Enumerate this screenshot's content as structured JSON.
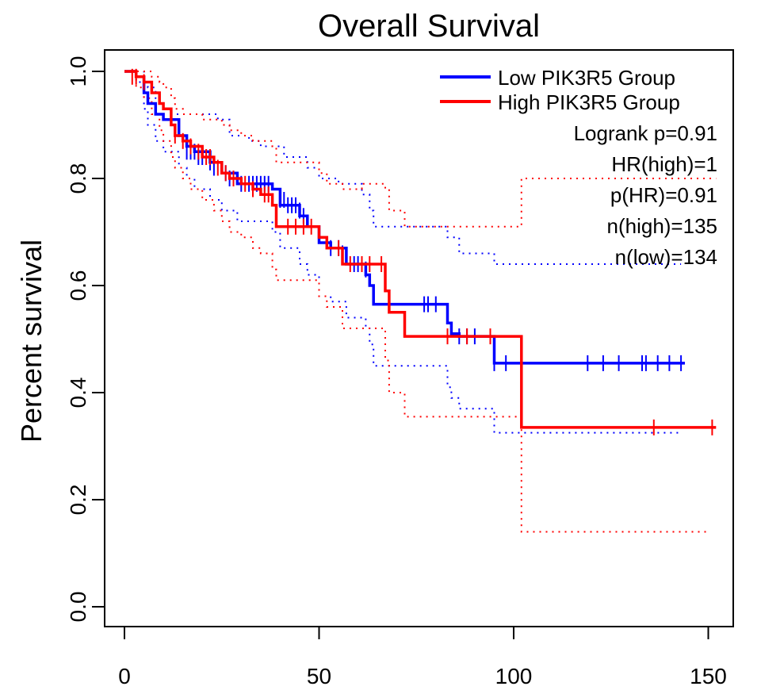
{
  "chart_data": {
    "type": "line",
    "title": "Overall Survival",
    "xlabel": "",
    "ylabel": "Percent survival",
    "xlim": [
      0,
      155
    ],
    "ylim": [
      0,
      1.0
    ],
    "x_ticks": [
      "0",
      "50",
      "100",
      "150"
    ],
    "y_ticks": [
      "0.0",
      "0.2",
      "0.4",
      "0.6",
      "0.8",
      "1.0"
    ],
    "legend_position": "top-right",
    "stats": [
      "Logrank p=0.91",
      "HR(high)=1",
      "p(HR)=0.91",
      "n(high)=135",
      "n(low)=134"
    ],
    "series": [
      {
        "name": "Low PIK3R5 Group",
        "color": "#0000ff",
        "steps": [
          [
            0,
            1.0
          ],
          [
            3,
            0.99
          ],
          [
            5,
            0.96
          ],
          [
            6,
            0.94
          ],
          [
            8,
            0.92
          ],
          [
            10,
            0.91
          ],
          [
            14,
            0.88
          ],
          [
            16,
            0.86
          ],
          [
            18,
            0.85
          ],
          [
            22,
            0.83
          ],
          [
            25,
            0.81
          ],
          [
            29,
            0.79
          ],
          [
            38,
            0.78
          ],
          [
            40,
            0.75
          ],
          [
            45,
            0.73
          ],
          [
            47,
            0.71
          ],
          [
            50,
            0.68
          ],
          [
            53,
            0.67
          ],
          [
            57,
            0.64
          ],
          [
            62,
            0.62
          ],
          [
            63,
            0.6
          ],
          [
            64,
            0.565
          ],
          [
            83,
            0.53
          ],
          [
            84,
            0.51
          ],
          [
            86,
            0.505
          ],
          [
            95,
            0.455
          ],
          [
            144,
            0.455
          ]
        ],
        "censors": [
          [
            16,
            0.85
          ],
          [
            17,
            0.85
          ],
          [
            18,
            0.85
          ],
          [
            19,
            0.84
          ],
          [
            20,
            0.84
          ],
          [
            22,
            0.83
          ],
          [
            23,
            0.82
          ],
          [
            26,
            0.81
          ],
          [
            27,
            0.8
          ],
          [
            28,
            0.8
          ],
          [
            30,
            0.79
          ],
          [
            32,
            0.79
          ],
          [
            33,
            0.79
          ],
          [
            34,
            0.79
          ],
          [
            35,
            0.79
          ],
          [
            36,
            0.79
          ],
          [
            37,
            0.79
          ],
          [
            40,
            0.76
          ],
          [
            41,
            0.76
          ],
          [
            42,
            0.75
          ],
          [
            43,
            0.75
          ],
          [
            44,
            0.75
          ],
          [
            45,
            0.74
          ],
          [
            46,
            0.73
          ],
          [
            53,
            0.67
          ],
          [
            55,
            0.67
          ],
          [
            56,
            0.66
          ],
          [
            59,
            0.64
          ],
          [
            60,
            0.64
          ],
          [
            62,
            0.63
          ],
          [
            77,
            0.565
          ],
          [
            78,
            0.565
          ],
          [
            80,
            0.565
          ],
          [
            86,
            0.505
          ],
          [
            88,
            0.505
          ],
          [
            90,
            0.505
          ],
          [
            95,
            0.455
          ],
          [
            98,
            0.455
          ],
          [
            119,
            0.455
          ],
          [
            123,
            0.455
          ],
          [
            127,
            0.455
          ],
          [
            133,
            0.455
          ],
          [
            134,
            0.455
          ],
          [
            137,
            0.455
          ],
          [
            140,
            0.455
          ],
          [
            143,
            0.455
          ]
        ],
        "ci_upper": [
          [
            0,
            1.0
          ],
          [
            4,
            1.0
          ],
          [
            5,
            0.98
          ],
          [
            6,
            0.97
          ],
          [
            8,
            0.95
          ],
          [
            9,
            0.94
          ],
          [
            10,
            0.93
          ],
          [
            12,
            0.92
          ],
          [
            24,
            0.91
          ],
          [
            27,
            0.88
          ],
          [
            32,
            0.87
          ],
          [
            35,
            0.86
          ],
          [
            41,
            0.84
          ],
          [
            47,
            0.82
          ],
          [
            50,
            0.8
          ],
          [
            55,
            0.79
          ],
          [
            61,
            0.77
          ],
          [
            63,
            0.74
          ],
          [
            64,
            0.71
          ],
          [
            83,
            0.69
          ],
          [
            86,
            0.66
          ],
          [
            95,
            0.64
          ],
          [
            143,
            0.64
          ]
        ],
        "ci_lower": [
          [
            0,
            1.0
          ],
          [
            3,
            0.98
          ],
          [
            5,
            0.93
          ],
          [
            6,
            0.9
          ],
          [
            8,
            0.87
          ],
          [
            10,
            0.85
          ],
          [
            14,
            0.82
          ],
          [
            16,
            0.8
          ],
          [
            18,
            0.78
          ],
          [
            22,
            0.76
          ],
          [
            25,
            0.74
          ],
          [
            29,
            0.72
          ],
          [
            38,
            0.7
          ],
          [
            40,
            0.67
          ],
          [
            45,
            0.64
          ],
          [
            47,
            0.62
          ],
          [
            50,
            0.58
          ],
          [
            53,
            0.57
          ],
          [
            57,
            0.54
          ],
          [
            62,
            0.52
          ],
          [
            63,
            0.49
          ],
          [
            64,
            0.45
          ],
          [
            83,
            0.41
          ],
          [
            84,
            0.39
          ],
          [
            86,
            0.37
          ],
          [
            95,
            0.325
          ],
          [
            143,
            0.325
          ]
        ]
      },
      {
        "name": "High PIK3R5 Group",
        "color": "#ff0000",
        "steps": [
          [
            0,
            1.0
          ],
          [
            3,
            0.99
          ],
          [
            5,
            0.98
          ],
          [
            7,
            0.96
          ],
          [
            9,
            0.94
          ],
          [
            10,
            0.93
          ],
          [
            12,
            0.9
          ],
          [
            13,
            0.88
          ],
          [
            15,
            0.87
          ],
          [
            17,
            0.86
          ],
          [
            20,
            0.84
          ],
          [
            23,
            0.83
          ],
          [
            25,
            0.81
          ],
          [
            27,
            0.8
          ],
          [
            30,
            0.79
          ],
          [
            33,
            0.78
          ],
          [
            35,
            0.77
          ],
          [
            38,
            0.75
          ],
          [
            39,
            0.71
          ],
          [
            50,
            0.69
          ],
          [
            52,
            0.67
          ],
          [
            56,
            0.64
          ],
          [
            67,
            0.59
          ],
          [
            68,
            0.55
          ],
          [
            72,
            0.505
          ],
          [
            102,
            0.335
          ],
          [
            152,
            0.335
          ]
        ],
        "censors": [
          [
            2,
            0.99
          ],
          [
            3,
            0.99
          ],
          [
            5,
            0.98
          ],
          [
            13,
            0.88
          ],
          [
            15,
            0.87
          ],
          [
            17,
            0.86
          ],
          [
            19,
            0.85
          ],
          [
            21,
            0.84
          ],
          [
            22,
            0.84
          ],
          [
            24,
            0.82
          ],
          [
            26,
            0.81
          ],
          [
            28,
            0.8
          ],
          [
            31,
            0.79
          ],
          [
            33,
            0.78
          ],
          [
            36,
            0.77
          ],
          [
            37,
            0.77
          ],
          [
            42,
            0.71
          ],
          [
            44,
            0.71
          ],
          [
            46,
            0.71
          ],
          [
            48,
            0.71
          ],
          [
            55,
            0.67
          ],
          [
            58,
            0.64
          ],
          [
            61,
            0.64
          ],
          [
            63,
            0.64
          ],
          [
            66,
            0.64
          ],
          [
            83,
            0.505
          ],
          [
            88,
            0.505
          ],
          [
            94,
            0.505
          ],
          [
            136,
            0.335
          ],
          [
            151,
            0.335
          ]
        ],
        "ci_upper": [
          [
            0,
            1.0
          ],
          [
            5,
            1.0
          ],
          [
            7,
            0.99
          ],
          [
            9,
            0.98
          ],
          [
            10,
            0.97
          ],
          [
            12,
            0.95
          ],
          [
            13,
            0.93
          ],
          [
            15,
            0.92
          ],
          [
            20,
            0.91
          ],
          [
            25,
            0.9
          ],
          [
            27,
            0.89
          ],
          [
            30,
            0.88
          ],
          [
            33,
            0.87
          ],
          [
            38,
            0.86
          ],
          [
            39,
            0.83
          ],
          [
            50,
            0.81
          ],
          [
            52,
            0.79
          ],
          [
            56,
            0.78
          ],
          [
            61,
            0.79
          ],
          [
            67,
            0.78
          ],
          [
            68,
            0.74
          ],
          [
            72,
            0.71
          ],
          [
            102,
            0.8
          ],
          [
            152,
            0.8
          ]
        ],
        "ci_lower": [
          [
            0,
            1.0
          ],
          [
            3,
            0.97
          ],
          [
            5,
            0.95
          ],
          [
            7,
            0.92
          ],
          [
            9,
            0.89
          ],
          [
            10,
            0.87
          ],
          [
            12,
            0.84
          ],
          [
            13,
            0.82
          ],
          [
            15,
            0.8
          ],
          [
            17,
            0.78
          ],
          [
            20,
            0.76
          ],
          [
            23,
            0.74
          ],
          [
            25,
            0.72
          ],
          [
            27,
            0.7
          ],
          [
            30,
            0.69
          ],
          [
            33,
            0.67
          ],
          [
            35,
            0.66
          ],
          [
            38,
            0.63
          ],
          [
            39,
            0.61
          ],
          [
            50,
            0.58
          ],
          [
            52,
            0.56
          ],
          [
            56,
            0.52
          ],
          [
            67,
            0.46
          ],
          [
            68,
            0.4
          ],
          [
            72,
            0.355
          ],
          [
            102,
            0.14
          ],
          [
            150,
            0.14
          ]
        ]
      }
    ]
  }
}
